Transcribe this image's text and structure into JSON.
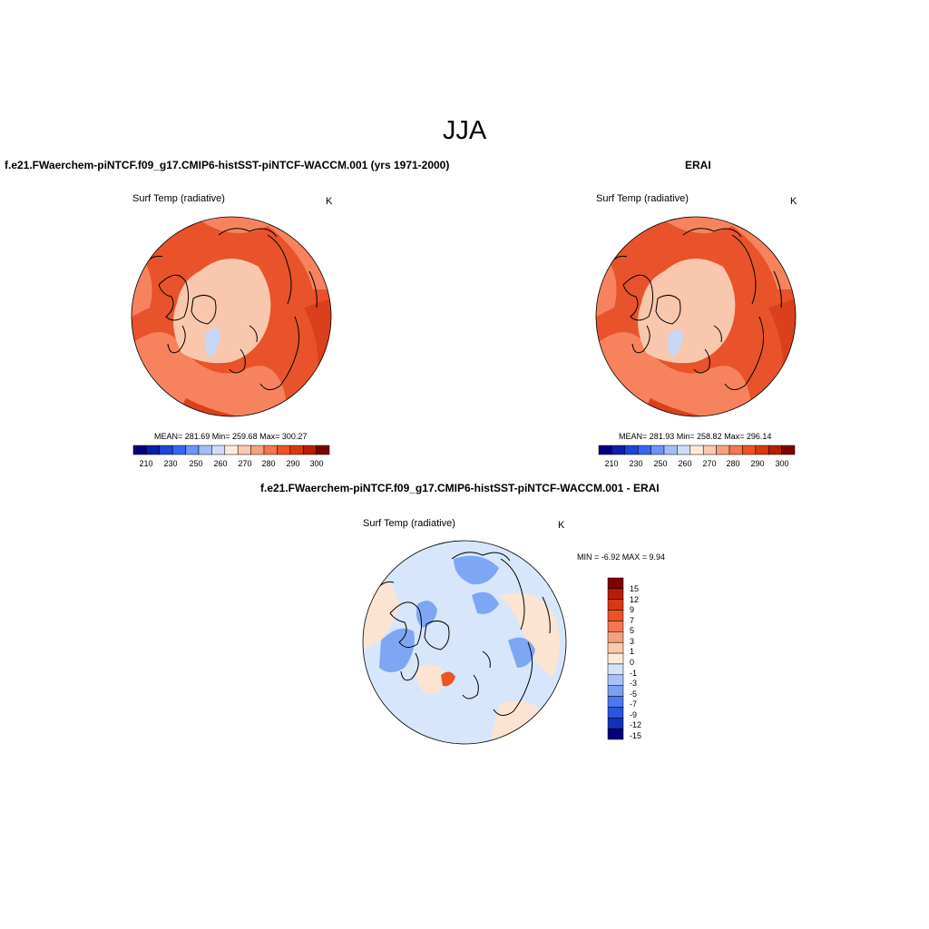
{
  "figure": {
    "season": "JJA",
    "units": "K"
  },
  "panels": [
    {
      "title": "f.e21.FWaerchem-piNTCF.f09_g17.CMIP6-histSST-piNTCF-WACCM.001 (yrs 1971-2000)",
      "variable": "Surf Temp (radiative)",
      "units": "K",
      "stats": "MEAN= 281.69   Min= 259.68   Max= 300.27",
      "colorbar": {
        "tick_labels": [
          "210",
          "230",
          "250",
          "260",
          "270",
          "280",
          "290",
          "300"
        ],
        "colors": [
          "#00007f",
          "#0a1fa8",
          "#1f44d6",
          "#3566ee",
          "#6d93f5",
          "#a3bdf8",
          "#cfdcfa",
          "#fcebd8",
          "#fbc9ad",
          "#f7a07c",
          "#f2764f",
          "#ec5426",
          "#d8380f",
          "#b51e05",
          "#7f0000"
        ]
      },
      "map_fill": {
        "ocean": "#e8532b",
        "continent": "#f6835e",
        "arctic": "#f9c7ad",
        "ice": "#c6d8f6"
      }
    },
    {
      "title": "ERAI",
      "variable": "Surf Temp (radiative)",
      "units": "K",
      "stats": "MEAN= 281.93   Min= 258.82   Max= 296.14",
      "colorbar": {
        "tick_labels": [
          "210",
          "230",
          "250",
          "260",
          "270",
          "280",
          "290",
          "300"
        ],
        "colors": [
          "#00007f",
          "#0a1fa8",
          "#1f44d6",
          "#3566ee",
          "#6d93f5",
          "#a3bdf8",
          "#cfdcfa",
          "#fcebd8",
          "#fbc9ad",
          "#f7a07c",
          "#f2764f",
          "#ec5426",
          "#d8380f",
          "#b51e05",
          "#7f0000"
        ]
      },
      "map_fill": {
        "ocean": "#e8532b",
        "continent": "#f6835e",
        "arctic": "#f9c7ad",
        "ice": "#c6d8f6"
      }
    },
    {
      "title": "f.e21.FWaerchem-piNTCF.f09_g17.CMIP6-histSST-piNTCF-WACCM.001 - ERAI",
      "variable": "Surf Temp (radiative)",
      "units": "K",
      "stats": "MIN =  -6.92 MAX =   9.94",
      "colorbar": {
        "tick_labels": [
          "15",
          "12",
          "9",
          "7",
          "5",
          "3",
          "1",
          "0",
          "-1",
          "-3",
          "-5",
          "-7",
          "-9",
          "-12",
          "-15"
        ],
        "colors": [
          "#7f0000",
          "#b51e05",
          "#d8380f",
          "#ec5426",
          "#f2764f",
          "#f7a07c",
          "#fbc9ad",
          "#fcebd8",
          "#d4e3fb",
          "#a8c2f8",
          "#7aa0f5",
          "#4b7af0",
          "#2a55e0",
          "#1432b8",
          "#00007f"
        ]
      },
      "map_fill": {
        "ocean": "#d7e6fa",
        "continent": "#fbe4d2",
        "arctic": "#e2ecfb",
        "ice": "#7ea6f2"
      }
    }
  ]
}
